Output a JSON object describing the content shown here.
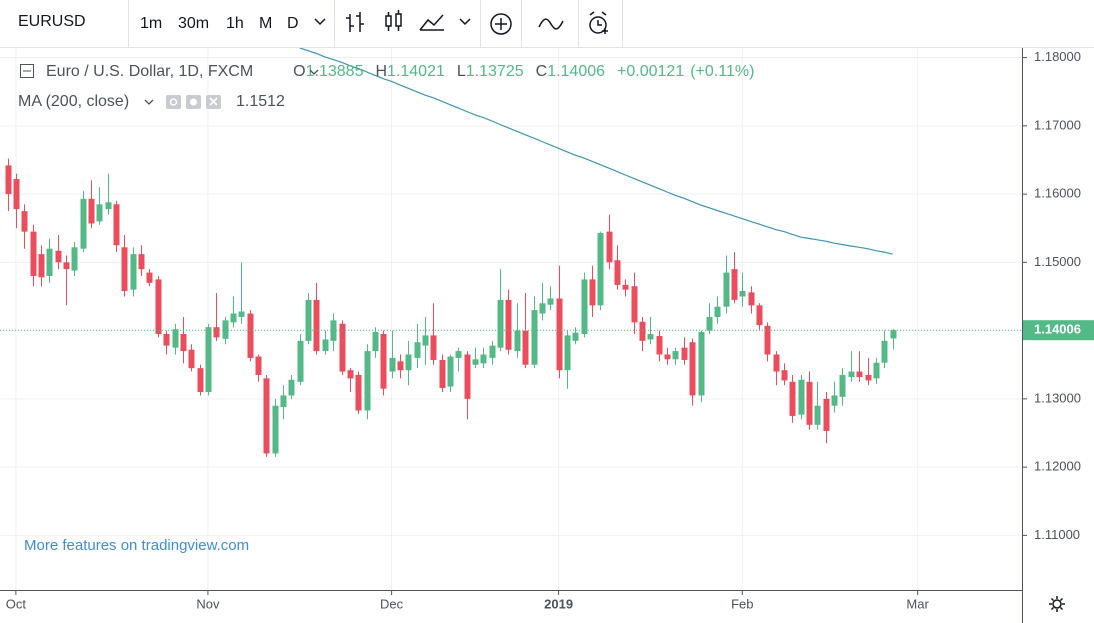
{
  "toolbar": {
    "symbol": "EURUSD",
    "intervals": [
      "1m",
      "30m",
      "1h",
      "M",
      "D"
    ]
  },
  "legend": {
    "instrument": "Euro / U.S. Dollar, 1D, FXCM",
    "o": "O",
    "h": "H",
    "l": "L",
    "c": "C",
    "change": "+0.00121",
    "change_pct": "(+0.11%)",
    "study": "MA (200, close)"
  },
  "promo": "More features on tradingview.com",
  "chart_data": {
    "type": "candlestick",
    "xlim": [
      -0.9,
      121.5
    ],
    "xticks": [
      {
        "value": 1,
        "label": "Oct"
      },
      {
        "value": 24,
        "label": "Nov"
      },
      {
        "value": 46,
        "label": "Dec"
      },
      {
        "value": 66,
        "label": "2019"
      },
      {
        "value": 88,
        "label": "Feb"
      },
      {
        "value": 109,
        "label": "Mar"
      }
    ],
    "ylim": [
      1.102,
      1.1814
    ],
    "yticks": [
      {
        "value": 1.11,
        "label": "1.11000"
      },
      {
        "value": 1.12,
        "label": "1.12000"
      },
      {
        "value": 1.13,
        "label": "1.13000"
      },
      {
        "value": 1.14,
        "label": "1.14000"
      },
      {
        "value": 1.15,
        "label": "1.15000"
      },
      {
        "value": 1.16,
        "label": "1.16000"
      },
      {
        "value": 1.17,
        "label": "1.17000"
      },
      {
        "value": 1.18,
        "label": "1.18000"
      }
    ],
    "grid": true,
    "up_color": "#53b987",
    "down_color": "#eb4d5c",
    "series": [
      {
        "name": "EURUSD",
        "type": "candlestick",
        "open": [
          1.1642,
          1.1622,
          1.1575,
          1.1545,
          1.1512,
          1.148,
          1.1517,
          1.15,
          1.1488,
          1.152,
          1.1593,
          1.156,
          1.1578,
          1.1585,
          1.1522,
          1.146,
          1.1512,
          1.1485,
          1.1475,
          1.1395,
          1.1375,
          1.1395,
          1.1372,
          1.1345,
          1.131,
          1.1405,
          1.1388,
          1.1412,
          1.142,
          1.1425,
          1.1362,
          1.133,
          1.122,
          1.1288,
          1.1305,
          1.1325,
          1.1385,
          1.1445,
          1.137,
          1.1385,
          1.141,
          1.1342,
          1.1335,
          1.1283,
          1.137,
          1.1395,
          1.134,
          1.1355,
          1.1342,
          1.136,
          1.1378,
          1.1393,
          1.1357,
          1.1318,
          1.136,
          1.1365,
          1.135,
          1.1352,
          1.136,
          1.1375,
          1.1445,
          1.137,
          1.14,
          1.135,
          1.1425,
          1.1438,
          1.1447,
          1.1342,
          1.1385,
          1.1395,
          1.1475,
          1.1437,
          1.1545,
          1.1503,
          1.1467,
          1.1465,
          1.1413,
          1.1387,
          1.1392,
          1.1365,
          1.1358,
          1.1375,
          1.1383,
          1.1305,
          1.14,
          1.142,
          1.1435,
          1.149,
          1.145,
          1.1456,
          1.1437,
          1.1407,
          1.1365,
          1.1342,
          1.1325,
          1.1277,
          1.1325,
          1.1262,
          1.13,
          1.129,
          1.1303,
          1.1332,
          1.134,
          1.1335,
          1.133,
          1.1353,
          1.13885
        ],
        "high": [
          1.1652,
          1.163,
          1.1585,
          1.1555,
          1.1525,
          1.1535,
          1.154,
          1.151,
          1.153,
          1.1605,
          1.162,
          1.161,
          1.163,
          1.159,
          1.154,
          1.1522,
          1.1525,
          1.149,
          1.148,
          1.14,
          1.141,
          1.142,
          1.138,
          1.135,
          1.141,
          1.1455,
          1.142,
          1.145,
          1.15,
          1.143,
          1.1365,
          1.1335,
          1.13,
          1.132,
          1.1335,
          1.1395,
          1.1455,
          1.147,
          1.14,
          1.1425,
          1.1415,
          1.1345,
          1.134,
          1.138,
          1.1405,
          1.14,
          1.14,
          1.1365,
          1.1385,
          1.141,
          1.142,
          1.144,
          1.1365,
          1.1365,
          1.1375,
          1.137,
          1.1375,
          1.1375,
          1.1385,
          1.149,
          1.146,
          1.144,
          1.1455,
          1.145,
          1.147,
          1.1465,
          1.1495,
          1.14,
          1.1405,
          1.1485,
          1.1495,
          1.1545,
          1.157,
          1.1525,
          1.1475,
          1.1485,
          1.142,
          1.142,
          1.14,
          1.1375,
          1.1375,
          1.139,
          1.1388,
          1.14,
          1.144,
          1.145,
          1.151,
          1.1515,
          1.1485,
          1.1465,
          1.144,
          1.1412,
          1.137,
          1.1352,
          1.1335,
          1.1335,
          1.134,
          1.1325,
          1.131,
          1.1325,
          1.1345,
          1.137,
          1.137,
          1.136,
          1.136,
          1.14,
          1.14021
        ],
        "low": [
          1.1575,
          1.155,
          1.152,
          1.1465,
          1.1465,
          1.147,
          1.149,
          1.1437,
          1.148,
          1.1515,
          1.155,
          1.1555,
          1.157,
          1.1515,
          1.145,
          1.145,
          1.148,
          1.1465,
          1.139,
          1.1365,
          1.1365,
          1.1352,
          1.134,
          1.1305,
          1.1305,
          1.1385,
          1.138,
          1.1405,
          1.141,
          1.1355,
          1.1325,
          1.1215,
          1.1215,
          1.127,
          1.13,
          1.132,
          1.138,
          1.1365,
          1.1365,
          1.137,
          1.1335,
          1.131,
          1.1278,
          1.127,
          1.136,
          1.1305,
          1.133,
          1.133,
          1.132,
          1.1345,
          1.135,
          1.135,
          1.131,
          1.131,
          1.134,
          1.127,
          1.1345,
          1.1345,
          1.135,
          1.137,
          1.1365,
          1.136,
          1.1345,
          1.1345,
          1.1415,
          1.143,
          1.133,
          1.1315,
          1.138,
          1.139,
          1.142,
          1.143,
          1.149,
          1.146,
          1.145,
          1.1395,
          1.137,
          1.138,
          1.1355,
          1.135,
          1.135,
          1.135,
          1.129,
          1.1295,
          1.1395,
          1.141,
          1.1425,
          1.144,
          1.1435,
          1.1425,
          1.14,
          1.1355,
          1.132,
          1.132,
          1.1265,
          1.127,
          1.1255,
          1.1255,
          1.1235,
          1.128,
          1.129,
          1.1325,
          1.1325,
          1.132,
          1.1322,
          1.1345,
          1.13725
        ],
        "close": [
          1.16,
          1.1578,
          1.1545,
          1.148,
          1.1478,
          1.152,
          1.15,
          1.149,
          1.1522,
          1.1593,
          1.1557,
          1.1585,
          1.1588,
          1.1525,
          1.1458,
          1.1512,
          1.149,
          1.147,
          1.1395,
          1.1378,
          1.1402,
          1.137,
          1.1345,
          1.131,
          1.1405,
          1.139,
          1.1415,
          1.1425,
          1.1428,
          1.136,
          1.1335,
          1.122,
          1.129,
          1.1305,
          1.1328,
          1.1385,
          1.1445,
          1.137,
          1.1387,
          1.1415,
          1.134,
          1.133,
          1.1283,
          1.137,
          1.1398,
          1.1315,
          1.136,
          1.1342,
          1.1365,
          1.1383,
          1.1393,
          1.1357,
          1.1316,
          1.1362,
          1.137,
          1.13,
          1.1358,
          1.1365,
          1.1378,
          1.1445,
          1.1372,
          1.14,
          1.135,
          1.143,
          1.144,
          1.1447,
          1.1342,
          1.1393,
          1.1397,
          1.1475,
          1.1437,
          1.1543,
          1.15,
          1.1467,
          1.146,
          1.1412,
          1.1385,
          1.1395,
          1.1365,
          1.1358,
          1.137,
          1.1357,
          1.1305,
          1.1398,
          1.142,
          1.1435,
          1.1485,
          1.1445,
          1.1458,
          1.1437,
          1.1408,
          1.1365,
          1.134,
          1.1327,
          1.1275,
          1.1328,
          1.1262,
          1.129,
          1.1253,
          1.1305,
          1.1335,
          1.134,
          1.1332,
          1.1327,
          1.1353,
          1.1385,
          1.14006
        ]
      },
      {
        "name": "MA",
        "type": "line",
        "color": "#3d95b5",
        "values": [
          null,
          null,
          null,
          null,
          null,
          null,
          null,
          null,
          null,
          null,
          null,
          null,
          null,
          null,
          null,
          null,
          null,
          null,
          null,
          null,
          null,
          null,
          null,
          null,
          null,
          null,
          null,
          null,
          null,
          null,
          null,
          null,
          null,
          null,
          null,
          1.1814,
          1.181,
          1.1806,
          1.1801,
          1.1797,
          1.1793,
          1.1788,
          1.1784,
          1.1779,
          1.1774,
          1.1769,
          1.1765,
          1.176,
          1.1755,
          1.175,
          1.1745,
          1.1741,
          1.1736,
          1.1731,
          1.1726,
          1.1721,
          1.1716,
          1.1712,
          1.1707,
          1.1702,
          1.1697,
          1.1692,
          1.1687,
          1.1682,
          1.1677,
          1.1672,
          1.1667,
          1.1662,
          1.1657,
          1.1653,
          1.1648,
          1.1643,
          1.1638,
          1.1633,
          1.1628,
          1.1623,
          1.1618,
          1.1613,
          1.1608,
          1.1603,
          1.1598,
          1.1594,
          1.1589,
          1.1584,
          1.158,
          1.1576,
          1.1572,
          1.1568,
          1.1564,
          1.156,
          1.1556,
          1.1552,
          1.1548,
          1.1545,
          1.1541,
          1.1537,
          1.1535,
          1.1533,
          1.1531,
          1.1528,
          1.1526,
          1.1524,
          1.1522,
          1.152,
          1.1517,
          1.1515,
          1.1512
        ]
      }
    ]
  }
}
